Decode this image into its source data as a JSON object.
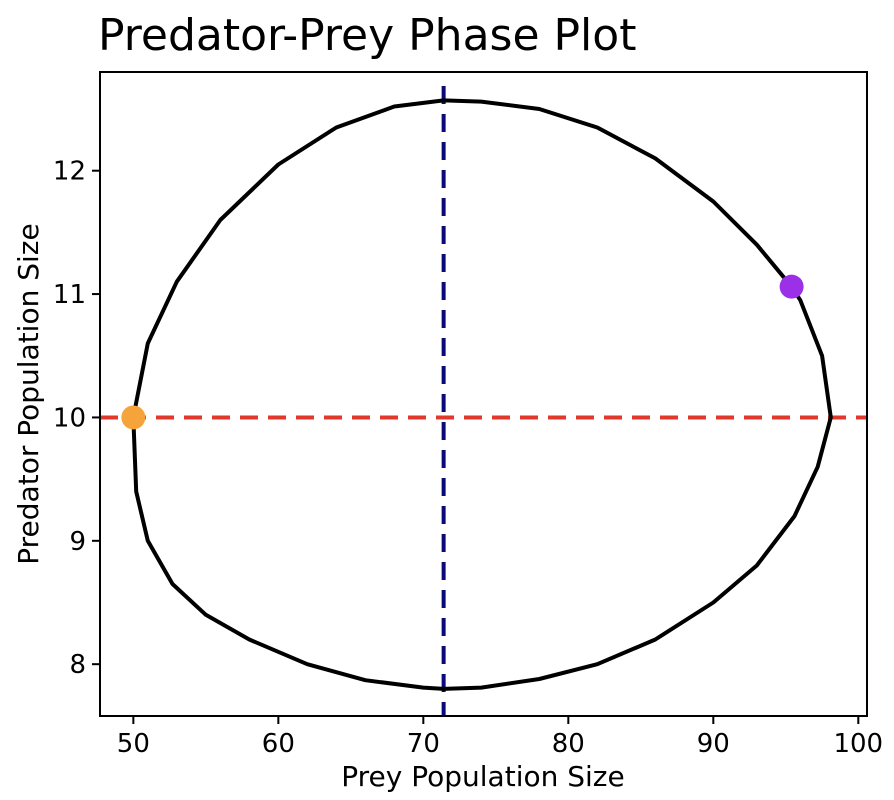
{
  "chart_data": {
    "type": "line",
    "title": "Predator-Prey Phase Plot",
    "xlabel": "Prey Population Size",
    "ylabel": "Predator Population Size",
    "xlim": [
      47.7,
      100.6
    ],
    "ylim": [
      7.58,
      12.8
    ],
    "x_ticks": [
      50,
      60,
      70,
      80,
      90,
      100
    ],
    "x_tick_labels": [
      "50",
      "60",
      "70",
      "80",
      "90",
      "100"
    ],
    "y_ticks": [
      8,
      9,
      10,
      11,
      12
    ],
    "y_tick_labels": [
      "8",
      "9",
      "10",
      "11",
      "12"
    ],
    "grid": false,
    "legend": "none",
    "series": [
      {
        "points": [
          [
            50.0,
            10.0
          ],
          [
            50.2,
            9.4
          ],
          [
            51.0,
            9.0
          ],
          [
            52.7,
            8.65
          ],
          [
            55.0,
            8.4
          ],
          [
            58.0,
            8.2
          ],
          [
            62.0,
            8.0
          ],
          [
            66.0,
            7.87
          ],
          [
            70.0,
            7.81
          ],
          [
            71.4,
            7.8
          ],
          [
            74.0,
            7.81
          ],
          [
            78.0,
            7.88
          ],
          [
            82.0,
            8.0
          ],
          [
            86.0,
            8.2
          ],
          [
            90.0,
            8.5
          ],
          [
            93.0,
            8.8
          ],
          [
            95.6,
            9.2
          ],
          [
            97.2,
            9.6
          ],
          [
            98.1,
            10.0
          ],
          [
            97.5,
            10.5
          ],
          [
            96.0,
            10.95
          ],
          [
            95.4,
            11.06
          ],
          [
            93.0,
            11.4
          ],
          [
            90.0,
            11.75
          ],
          [
            86.0,
            12.1
          ],
          [
            82.0,
            12.35
          ],
          [
            78.0,
            12.5
          ],
          [
            74.0,
            12.56
          ],
          [
            71.4,
            12.57
          ],
          [
            68.0,
            12.52
          ],
          [
            64.0,
            12.35
          ],
          [
            60.0,
            12.05
          ],
          [
            56.0,
            11.6
          ],
          [
            53.0,
            11.1
          ],
          [
            51.0,
            10.6
          ],
          [
            50.0,
            10.0
          ]
        ],
        "color": "#000000"
      }
    ],
    "reference_lines": [
      {
        "orientation": "vertical",
        "value": 71.4,
        "color": "#0a0a7a",
        "style": "dashed"
      },
      {
        "orientation": "horizontal",
        "value": 10.0,
        "color": "#e0392b",
        "style": "dashed"
      }
    ],
    "markers": [
      {
        "x": 50.0,
        "y": 10.0,
        "color": "#f4a43a"
      },
      {
        "x": 95.4,
        "y": 11.06,
        "color": "#9b30e8"
      }
    ]
  }
}
